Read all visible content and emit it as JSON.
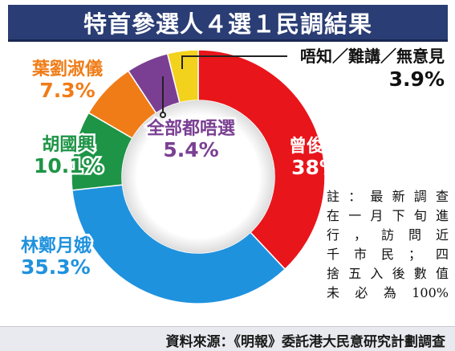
{
  "title": "特首參選人４選１民調結果",
  "chart_data": {
    "type": "pie",
    "style": "donut",
    "title": "特首參選人４選１民調結果",
    "slices": [
      {
        "name": "曾俊華",
        "value": 38,
        "label": "38%",
        "color": "#e8151b"
      },
      {
        "name": "林鄭月娥",
        "value": 35.3,
        "label": "35.3%",
        "color": "#1f92de"
      },
      {
        "name": "胡國興",
        "value": 10.1,
        "label": "10.1%",
        "color": "#1e9446"
      },
      {
        "name": "葉劉淑儀",
        "value": 7.3,
        "label": "7.3%",
        "color": "#f07c17"
      },
      {
        "name": "全部都唔選",
        "value": 5.4,
        "label": "5.4%",
        "color": "#7a3f93"
      },
      {
        "name": "唔知／難講／無意見",
        "value": 3.9,
        "label": "3.9%",
        "color": "#f3d21e"
      }
    ]
  },
  "note_lines": [
    "註：最新調查",
    "在一月下旬進",
    "行，訪問近",
    "千市民；四",
    "捨五入後數值",
    "未必為100%"
  ],
  "source": "資料來源：《明報》委託港大民意研究計劃調查"
}
